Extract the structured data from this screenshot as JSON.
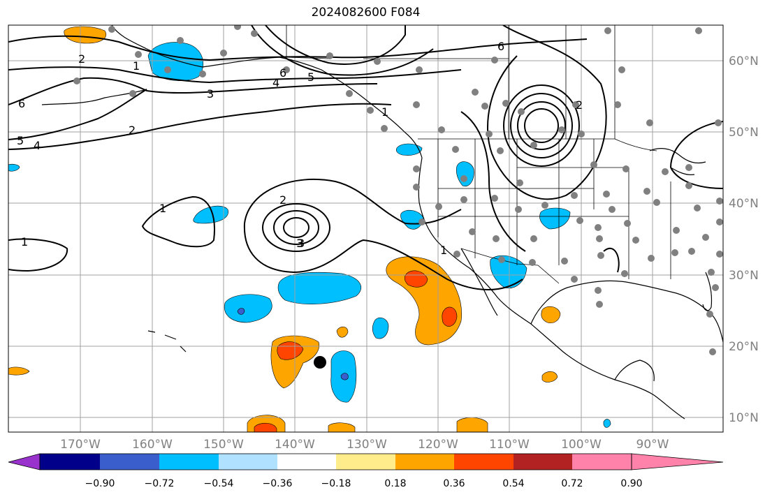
{
  "title": "2024082600 F084",
  "lon_labels": [
    "170°W",
    "160°W",
    "150°W",
    "140°W",
    "130°W",
    "120°W",
    "110°W",
    "100°W",
    "90°W"
  ],
  "lat_labels": [
    "60°N",
    "50°N",
    "40°N",
    "30°N",
    "20°N",
    "10°N"
  ],
  "colorbar": {
    "colors": [
      "#9932cc",
      "#00008b",
      "#3a5fcd",
      "#00bfff",
      "#b0e2ff",
      "#ffffff",
      "#ffec8b",
      "#ffa500",
      "#ff4500",
      "#b22222",
      "#ff82ab"
    ],
    "tick_labels": [
      "−0.90",
      "−0.72",
      "−0.54",
      "−0.36",
      "−0.18",
      "0.18",
      "0.36",
      "0.54",
      "0.72",
      "0.90"
    ]
  },
  "contour_labels": [
    "1",
    "2",
    "3",
    "4",
    "5",
    "6",
    "1",
    "2",
    "3",
    "4",
    "5",
    "6",
    "6",
    "1",
    "2",
    "3",
    "1",
    "1",
    "2"
  ]
}
